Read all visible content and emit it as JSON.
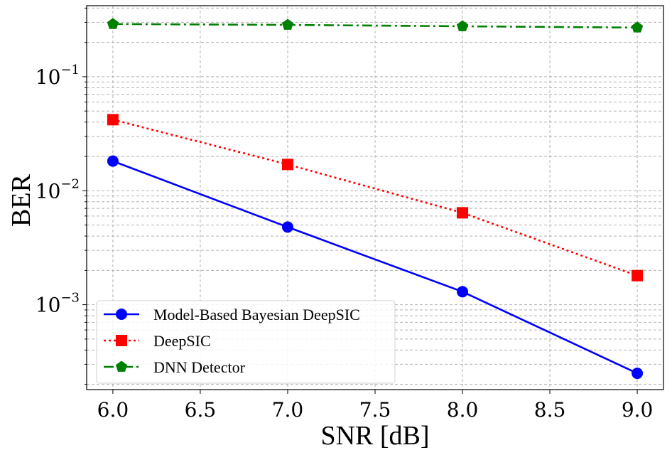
{
  "chart_data": {
    "type": "line",
    "xlabel": "SNR [dB]",
    "ylabel": "BER",
    "yscale": "log",
    "xlim": [
      5.85,
      9.15
    ],
    "ylim": [
      0.00018,
      0.42
    ],
    "xticks": [
      "6.0",
      "6.5",
      "7.0",
      "7.5",
      "8.0",
      "8.5",
      "9.0"
    ],
    "xtick_values": [
      6.0,
      6.5,
      7.0,
      7.5,
      8.0,
      8.5,
      9.0
    ],
    "yticks": [
      {
        "value": 0.1,
        "base": "10",
        "exp": "−1"
      },
      {
        "value": 0.01,
        "base": "10",
        "exp": "−2"
      },
      {
        "value": 0.001,
        "base": "10",
        "exp": "−3"
      }
    ],
    "grid": true,
    "legend_position": "lower-left",
    "x": [
      6.0,
      7.0,
      8.0,
      9.0
    ],
    "series": [
      {
        "name": "Model-Based Bayesian DeepSIC",
        "values": [
          0.0182,
          0.0048,
          0.0013,
          0.00025
        ],
        "color": "#0000ff",
        "style": "solid",
        "marker": "circle"
      },
      {
        "name": "DeepSIC",
        "values": [
          0.042,
          0.017,
          0.0064,
          0.0018
        ],
        "color": "#ff0000",
        "style": "dotted",
        "marker": "square"
      },
      {
        "name": "DNN Detector",
        "values": [
          0.29,
          0.285,
          0.277,
          0.27
        ],
        "color": "#008000",
        "style": "dashdot",
        "marker": "pentagon"
      }
    ]
  }
}
